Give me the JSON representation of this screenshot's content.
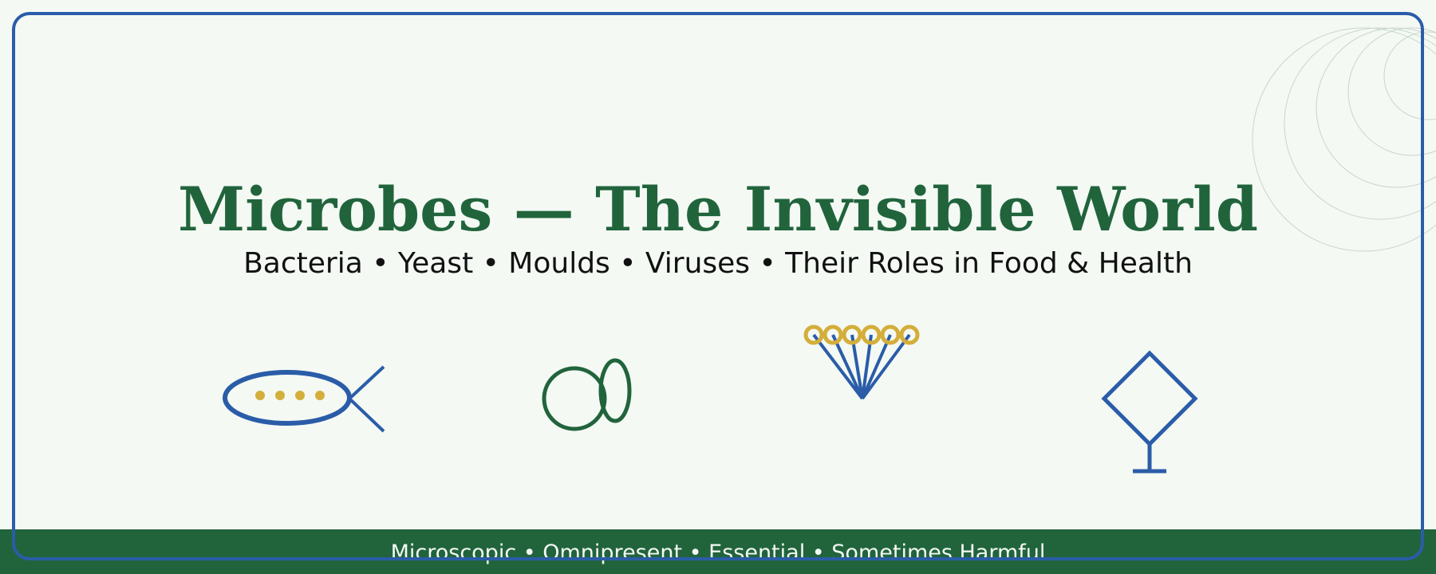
{
  "header": {
    "title": "Microbes — The Invisible World",
    "subtitle": "Bacteria • Yeast • Moulds • Viruses • Their Roles in Food & Health"
  },
  "footer": {
    "tagline": "Microscopic • Omnipresent • Essential • Sometimes Harmful"
  },
  "icons": [
    "bacterium-icon",
    "yeast-icon",
    "mould-icon",
    "virus-icon"
  ],
  "colors": {
    "background": "#f4f9f4",
    "primary_green": "#21643c",
    "accent_blue": "#2a5ca8",
    "accent_gold": "#d4ae3a",
    "text": "#111111"
  }
}
